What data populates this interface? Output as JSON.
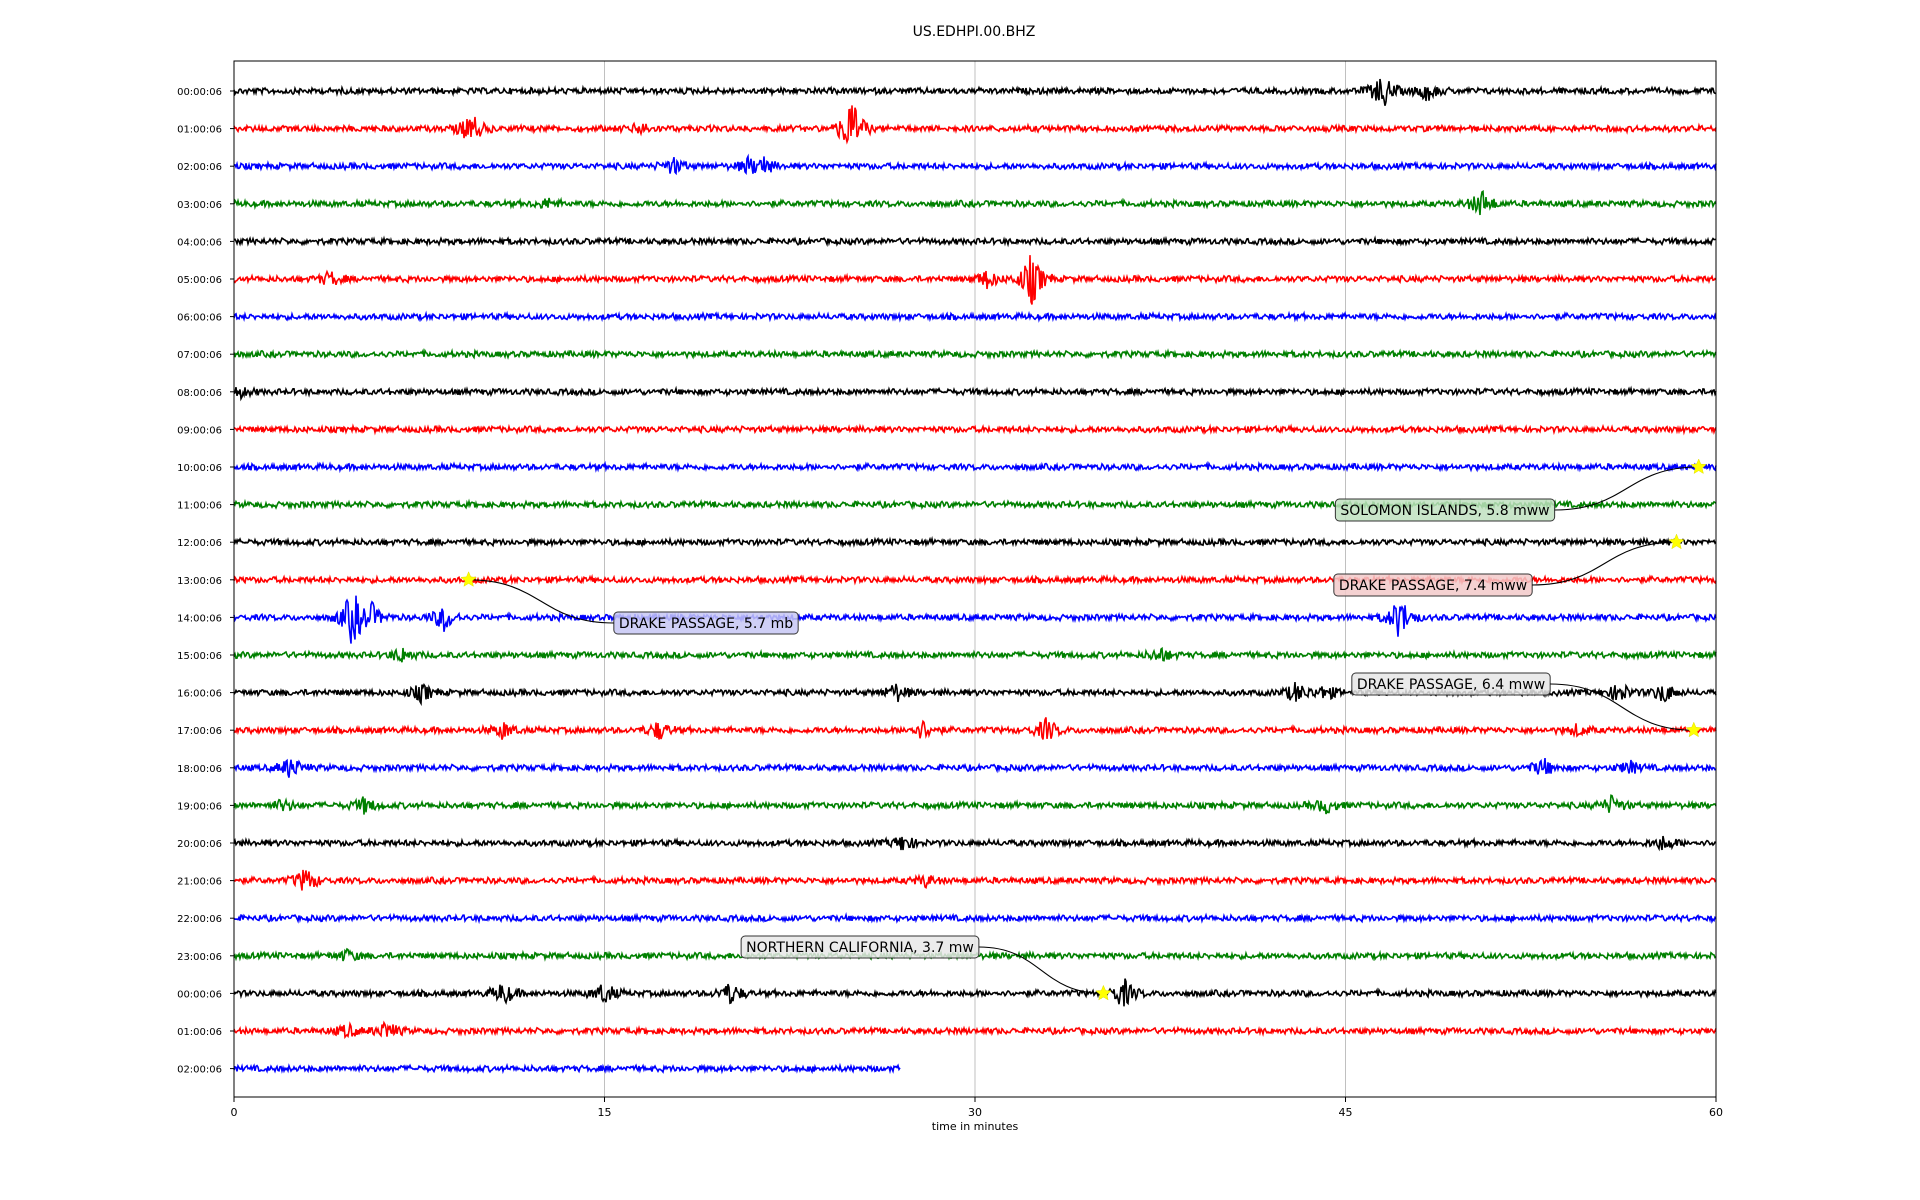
{
  "chart_data": {
    "type": "line",
    "title": "US.EDHPI.00.BHZ",
    "xlabel": "time in minutes",
    "ylabel": "",
    "xlim": [
      0,
      60
    ],
    "x_ticks": [
      "0",
      "15",
      "30",
      "45",
      "60"
    ],
    "grid": "vertical gridlines at 15, 30, 45",
    "trace_colors": [
      "#000000",
      "#ff0000",
      "#0000ff",
      "#008000"
    ],
    "rows": [
      {
        "label": "00:00:06",
        "color": "#000000",
        "end": 60,
        "bursts": [
          [
            46.5,
            2.0
          ],
          [
            48.3,
            1.0
          ]
        ]
      },
      {
        "label": "01:00:06",
        "color": "#ff0000",
        "end": 60,
        "bursts": [
          [
            9.6,
            1.8
          ],
          [
            25.0,
            3.5
          ],
          [
            16.5,
            0.6
          ]
        ]
      },
      {
        "label": "02:00:06",
        "color": "#0000ff",
        "end": 60,
        "bursts": [
          [
            17.8,
            0.9
          ],
          [
            21.4,
            1.0
          ],
          [
            20.8,
            0.7
          ]
        ]
      },
      {
        "label": "03:00:06",
        "color": "#008000",
        "end": 60,
        "bursts": [
          [
            50.5,
            1.5
          ],
          [
            12.7,
            0.5
          ]
        ]
      },
      {
        "label": "04:00:06",
        "color": "#000000",
        "end": 60,
        "bursts": []
      },
      {
        "label": "05:00:06",
        "color": "#ff0000",
        "end": 60,
        "bursts": [
          [
            32.3,
            3.0
          ],
          [
            30.5,
            1.0
          ],
          [
            3.9,
            0.8
          ]
        ]
      },
      {
        "label": "06:00:06",
        "color": "#0000ff",
        "end": 60,
        "bursts": []
      },
      {
        "label": "07:00:06",
        "color": "#008000",
        "end": 60,
        "bursts": []
      },
      {
        "label": "08:00:06",
        "color": "#000000",
        "end": 60,
        "bursts": [
          [
            0.2,
            0.6
          ]
        ]
      },
      {
        "label": "09:00:06",
        "color": "#ff0000",
        "end": 60,
        "bursts": []
      },
      {
        "label": "10:00:06",
        "color": "#0000ff",
        "end": 60,
        "bursts": []
      },
      {
        "label": "11:00:06",
        "color": "#008000",
        "end": 60,
        "bursts": []
      },
      {
        "label": "12:00:06",
        "color": "#000000",
        "end": 60,
        "bursts": []
      },
      {
        "label": "13:00:06",
        "color": "#ff0000",
        "end": 60,
        "bursts": []
      },
      {
        "label": "14:00:06",
        "color": "#0000ff",
        "end": 60,
        "bursts": [
          [
            4.8,
            3.2
          ],
          [
            5.6,
            1.2
          ],
          [
            8.5,
            1.5
          ],
          [
            47.2,
            2.4
          ]
        ]
      },
      {
        "label": "15:00:06",
        "color": "#008000",
        "end": 60,
        "bursts": [
          [
            6.8,
            0.8
          ],
          [
            37.5,
            0.8
          ]
        ]
      },
      {
        "label": "16:00:06",
        "color": "#000000",
        "end": 60,
        "bursts": [
          [
            7.6,
            1.0
          ],
          [
            26.8,
            1.0
          ],
          [
            43.0,
            1.1
          ],
          [
            44.2,
            0.8
          ],
          [
            56.1,
            1.1
          ],
          [
            57.9,
            1.1
          ]
        ]
      },
      {
        "label": "17:00:06",
        "color": "#ff0000",
        "end": 60,
        "bursts": [
          [
            10.9,
            0.9
          ],
          [
            17.2,
            1.0
          ],
          [
            27.9,
            1.0
          ],
          [
            32.9,
            1.3
          ],
          [
            54.4,
            0.6
          ]
        ]
      },
      {
        "label": "18:00:06",
        "color": "#0000ff",
        "end": 60,
        "bursts": [
          [
            2.3,
            1.2
          ],
          [
            53.0,
            1.0
          ],
          [
            56.5,
            0.7
          ]
        ]
      },
      {
        "label": "19:00:06",
        "color": "#008000",
        "end": 60,
        "bursts": [
          [
            2.0,
            0.6
          ],
          [
            5.3,
            0.9
          ],
          [
            44.2,
            0.8
          ],
          [
            55.8,
            1.0
          ]
        ]
      },
      {
        "label": "20:00:06",
        "color": "#000000",
        "end": 60,
        "bursts": [
          [
            27.1,
            0.9
          ],
          [
            57.9,
            0.8
          ]
        ]
      },
      {
        "label": "21:00:06",
        "color": "#ff0000",
        "end": 60,
        "bursts": [
          [
            2.9,
            1.4
          ],
          [
            28.0,
            0.6
          ]
        ]
      },
      {
        "label": "22:00:06",
        "color": "#0000ff",
        "end": 60,
        "bursts": []
      },
      {
        "label": "23:00:06",
        "color": "#008000",
        "end": 60,
        "bursts": [
          [
            4.6,
            0.6
          ]
        ]
      },
      {
        "label": "00:00:06",
        "color": "#000000",
        "end": 60,
        "bursts": [
          [
            10.9,
            1.2
          ],
          [
            15.0,
            1.2
          ],
          [
            20.1,
            1.2
          ],
          [
            36.0,
            1.7
          ]
        ]
      },
      {
        "label": "01:00:06",
        "color": "#ff0000",
        "end": 60,
        "bursts": [
          [
            4.6,
            0.7
          ],
          [
            6.2,
            1.0
          ]
        ]
      },
      {
        "label": "02:00:06",
        "color": "#0000ff",
        "end": 27,
        "bursts": []
      }
    ],
    "events": [
      {
        "label": "SOLOMON ISLANDS, 5.8 mww",
        "row": 10,
        "x": 59.3,
        "box_color": "#bfe0bf"
      },
      {
        "label": "DRAKE PASSAGE, 7.4 mww",
        "row": 12,
        "x": 58.4,
        "box_color": "#f2c9c9"
      },
      {
        "label": "DRAKE PASSAGE, 5.7 mb",
        "row": 13,
        "x": 9.5,
        "box_color": "#c7c7f5"
      },
      {
        "label": "DRAKE PASSAGE, 6.4 mww",
        "row": 17,
        "x": 59.1,
        "box_color": "#e6e6e6"
      },
      {
        "label": "NORTHERN CALIFORNIA, 3.7 mw",
        "row": 24,
        "x": 35.2,
        "box_color": "#e8e8e8"
      }
    ]
  }
}
